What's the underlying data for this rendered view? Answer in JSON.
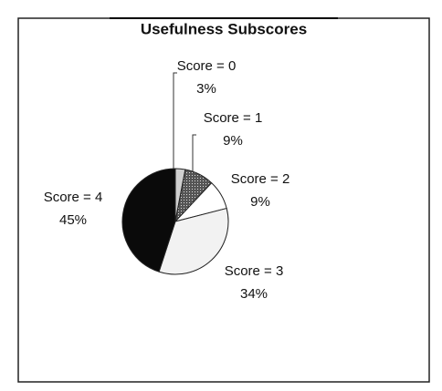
{
  "chart_data": {
    "type": "pie",
    "title": "Usefulness Subscores",
    "categories": [
      "Score = 0",
      "Score = 1",
      "Score = 2",
      "Score = 3",
      "Score = 4"
    ],
    "values": [
      3,
      9,
      9,
      34,
      45
    ],
    "value_labels": [
      "3%",
      "9%",
      "9%",
      "34%",
      "45%"
    ],
    "colors": [
      "#cfcfcf",
      "#7a7a7a",
      "#ffffff",
      "#f2f2f2",
      "#0a0a0a"
    ]
  }
}
